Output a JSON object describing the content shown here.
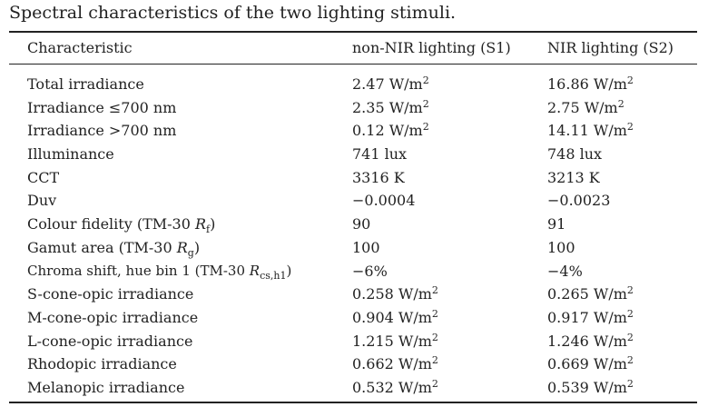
{
  "caption": "Spectral characteristics of the two lighting stimuli.",
  "headers": {
    "characteristic": "Characteristic",
    "s1": "non-NIR lighting (S1)",
    "s2": "NIR lighting (S2)"
  },
  "units": {
    "irradiance": "W/m",
    "irradiance_exp": "2"
  },
  "rows": [
    {
      "label": "Total irradiance",
      "s1": "2.47",
      "s2": "16.86"
    },
    {
      "label": "Irradiance ≤700 nm",
      "s1": "2.35",
      "s2": "2.75"
    },
    {
      "label": "Irradiance >700 nm",
      "s1": "0.12",
      "s2": "14.11"
    },
    {
      "label": "Illuminance",
      "s1": "741 lux",
      "s2": "748 lux"
    },
    {
      "label": "CCT",
      "s1": "3316 K",
      "s2": "3213 K"
    },
    {
      "label": "Duv",
      "s1": "−0.0004",
      "s2": "−0.0023"
    },
    {
      "label_pre": "Colour fidelity (TM-30 ",
      "label_sym": "R",
      "label_sub": "f",
      "label_post": ")",
      "s1": "90",
      "s2": "91"
    },
    {
      "label_pre": "Gamut area (TM-30 ",
      "label_sym": "R",
      "label_sub": "g",
      "label_post": ")",
      "s1": "100",
      "s2": "100"
    },
    {
      "label_pre": "Chroma shift, hue bin 1 (TM-30 ",
      "label_sym": "R",
      "label_sub": "cs,h1",
      "label_post": ")",
      "s1": "−6%",
      "s2": "−4%"
    },
    {
      "label": "S-cone-opic irradiance",
      "s1": "0.258",
      "s2": "0.265"
    },
    {
      "label": "M-cone-opic irradiance",
      "s1": "0.904",
      "s2": "0.917"
    },
    {
      "label": "L-cone-opic irradiance",
      "s1": "1.215",
      "s2": "1.246"
    },
    {
      "label": "Rhodopic irradiance",
      "s1": "0.662",
      "s2": "0.669"
    },
    {
      "label": "Melanopic irradiance",
      "s1": "0.532",
      "s2": "0.539"
    }
  ]
}
